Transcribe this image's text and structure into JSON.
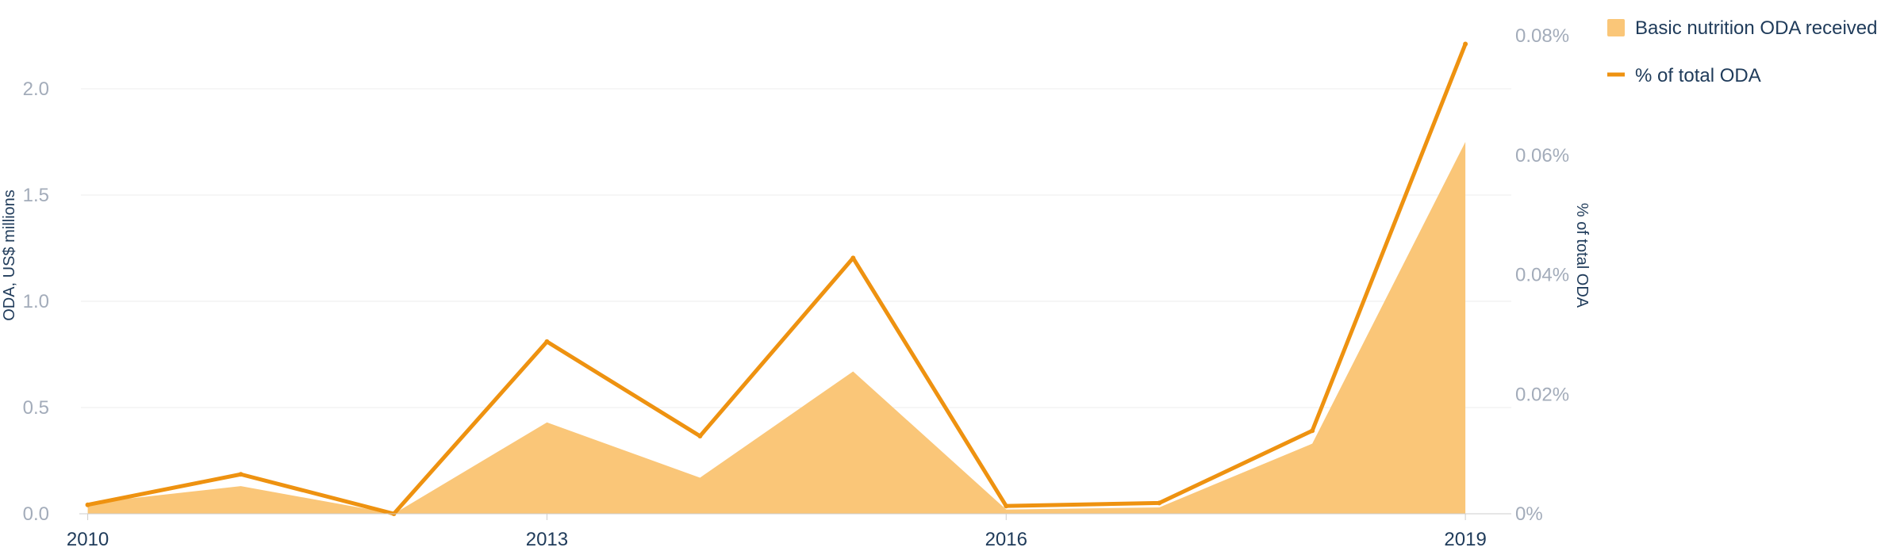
{
  "chart_data": {
    "type": "area",
    "x": [
      2010,
      2011,
      2012,
      2013,
      2014,
      2015,
      2016,
      2017,
      2018,
      2019
    ],
    "x_tick_labels": [
      "2010",
      "2013",
      "2016",
      "2019"
    ],
    "x_tick_values": [
      2010,
      2013,
      2016,
      2019
    ],
    "series": [
      {
        "name": "Basic nutrition ODA received",
        "type": "area",
        "axis": "left",
        "color": "#fac678",
        "values": [
          0.05,
          0.13,
          0.0,
          0.43,
          0.17,
          0.67,
          0.02,
          0.03,
          0.33,
          1.75
        ]
      },
      {
        "name": "% of total ODA",
        "type": "line",
        "axis": "right",
        "color": "#ee9210",
        "values": [
          0.0015,
          0.0066,
          0.0,
          0.0288,
          0.013,
          0.0428,
          0.0013,
          0.0018,
          0.0139,
          0.0786
        ]
      }
    ],
    "ylabel": "ODA, US$ millions",
    "ylim": [
      0,
      2.25
    ],
    "y_ticks": [
      "0.0",
      "0.5",
      "1.0",
      "1.5",
      "2.0"
    ],
    "y_tick_values": [
      0,
      0.5,
      1.0,
      1.5,
      2.0
    ],
    "y2label": "% of total ODA",
    "y2lim": [
      0,
      0.08
    ],
    "y2_ticks": [
      "0%",
      "0.02%",
      "0.04%",
      "0.06%",
      "0.08%"
    ],
    "y2_tick_values": [
      0,
      0.02,
      0.04,
      0.06,
      0.08
    ],
    "grid": true,
    "legend": "top-right"
  }
}
